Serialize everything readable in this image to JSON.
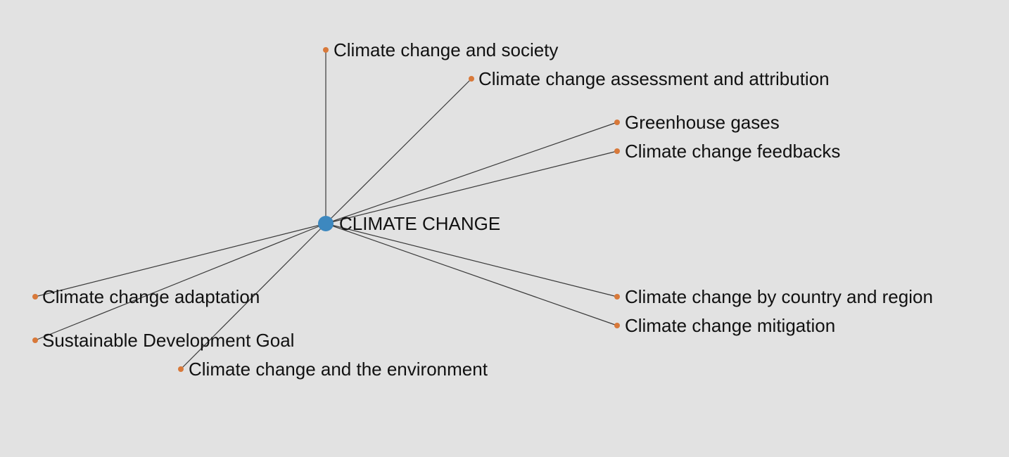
{
  "colors": {
    "background": "#e2e2e2",
    "root_node": "#3d88bf",
    "leaf_node": "#d8793a",
    "edge": "#3a3a3a",
    "label": "#111111"
  },
  "graph": {
    "root": {
      "label": "CLIMATE CHANGE"
    },
    "children": [
      {
        "id": "society",
        "label": "Climate change and society"
      },
      {
        "id": "assessment",
        "label": "Climate change assessment and attribution"
      },
      {
        "id": "ghg",
        "label": "Greenhouse gases"
      },
      {
        "id": "feedbacks",
        "label": "Climate change feedbacks"
      },
      {
        "id": "country",
        "label": "Climate change by country and region"
      },
      {
        "id": "mitigation",
        "label": "Climate change mitigation"
      },
      {
        "id": "adaptation",
        "label": "Climate change adaptation"
      },
      {
        "id": "sdg",
        "label": "Sustainable Development Goal"
      },
      {
        "id": "environment",
        "label": "Climate change and the environment"
      }
    ]
  }
}
